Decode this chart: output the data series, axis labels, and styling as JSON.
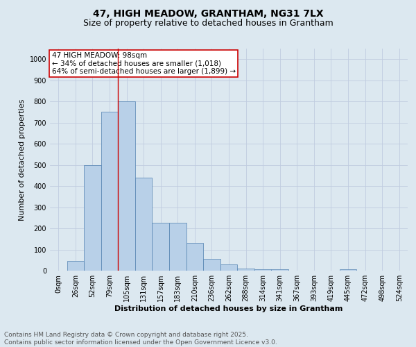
{
  "title_line1": "47, HIGH MEADOW, GRANTHAM, NG31 7LX",
  "title_line2": "Size of property relative to detached houses in Grantham",
  "xlabel": "Distribution of detached houses by size in Grantham",
  "ylabel": "Number of detached properties",
  "categories": [
    "0sqm",
    "26sqm",
    "52sqm",
    "79sqm",
    "105sqm",
    "131sqm",
    "157sqm",
    "183sqm",
    "210sqm",
    "236sqm",
    "262sqm",
    "288sqm",
    "314sqm",
    "341sqm",
    "367sqm",
    "393sqm",
    "419sqm",
    "445sqm",
    "472sqm",
    "498sqm",
    "524sqm"
  ],
  "values": [
    0,
    45,
    500,
    750,
    800,
    440,
    225,
    225,
    130,
    55,
    30,
    10,
    8,
    5,
    0,
    0,
    0,
    5,
    0,
    0,
    0
  ],
  "bar_color": "#b8d0e8",
  "bar_edge_color": "#5080b0",
  "grid_color": "#c0cce0",
  "background_color": "#dce8f0",
  "vline_x_index": 3.5,
  "vline_color": "#cc0000",
  "annotation_text": "47 HIGH MEADOW: 98sqm\n← 34% of detached houses are smaller (1,018)\n64% of semi-detached houses are larger (1,899) →",
  "annotation_box_color": "#ffffff",
  "annotation_box_edge": "#cc0000",
  "ylim": [
    0,
    1050
  ],
  "yticks": [
    0,
    100,
    200,
    300,
    400,
    500,
    600,
    700,
    800,
    900,
    1000
  ],
  "footer_line1": "Contains HM Land Registry data © Crown copyright and database right 2025.",
  "footer_line2": "Contains public sector information licensed under the Open Government Licence v3.0.",
  "title_fontsize": 10,
  "subtitle_fontsize": 9,
  "axis_label_fontsize": 8,
  "tick_fontsize": 7,
  "annotation_fontsize": 7.5,
  "footer_fontsize": 6.5
}
